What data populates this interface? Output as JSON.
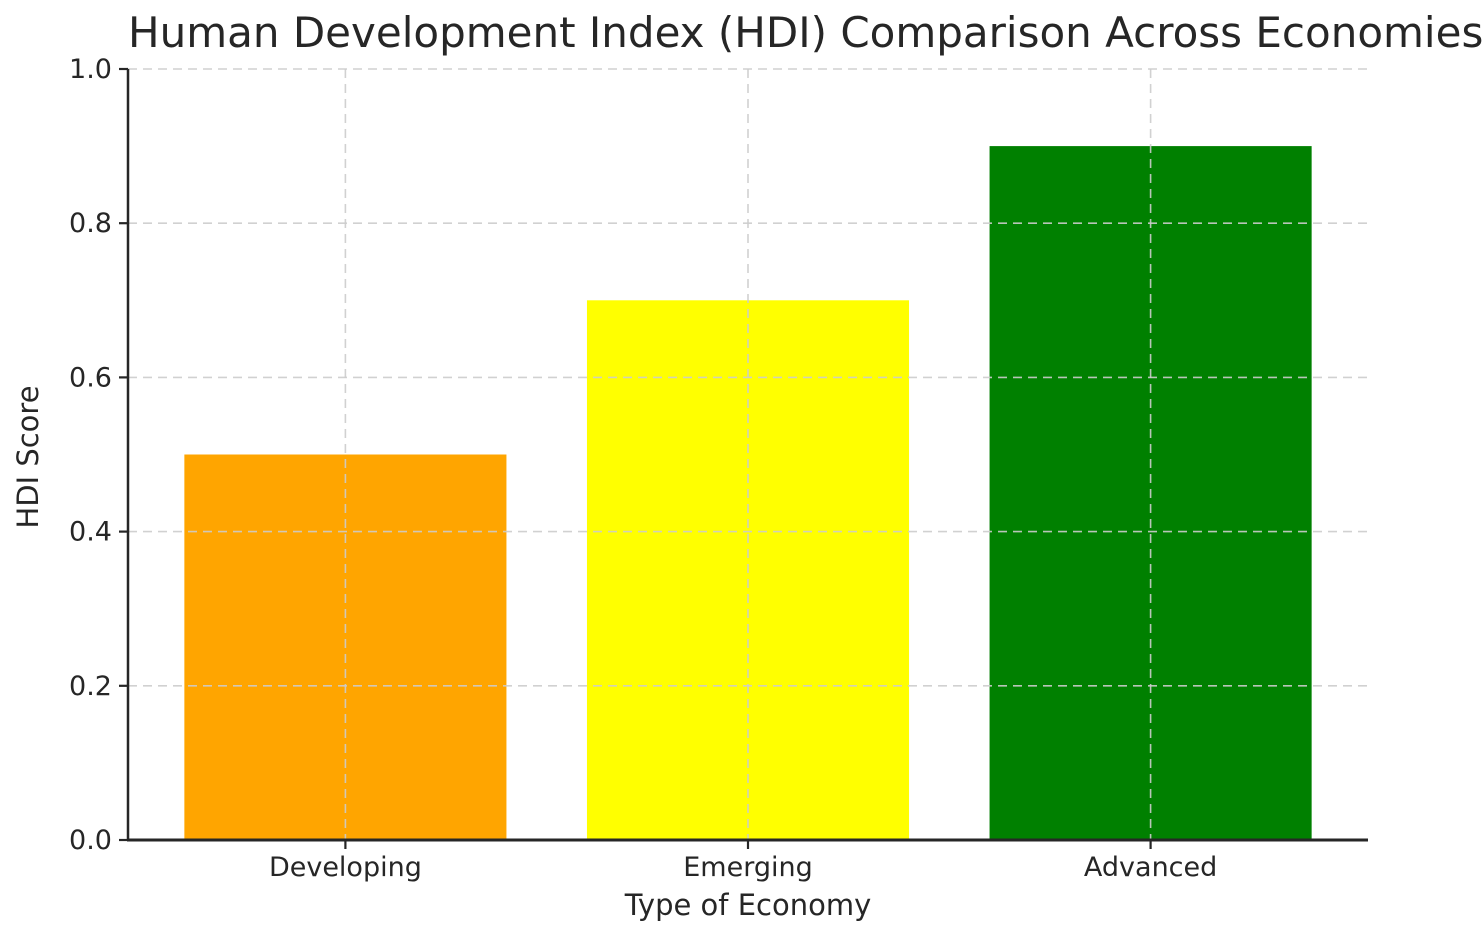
{
  "chart_data": {
    "type": "bar",
    "title": "Human Development Index (HDI) Comparison Across Economies",
    "xlabel": "Type of Economy",
    "ylabel": "HDI Score",
    "categories": [
      "Developing",
      "Emerging",
      "Advanced"
    ],
    "values": [
      0.5,
      0.7,
      0.9
    ],
    "bar_colors": [
      "#FFA500",
      "#FFFF00",
      "#008000"
    ],
    "ylim": [
      0.0,
      1.0
    ],
    "yticks": [
      0.0,
      0.2,
      0.4,
      0.6,
      0.8,
      1.0
    ],
    "ytick_labels": [
      "0.0",
      "0.2",
      "0.4",
      "0.6",
      "0.8",
      "1.0"
    ],
    "legend": "none",
    "grid": {
      "visible": true,
      "style": "dashed",
      "axes": "both",
      "drawn_above_bars": true,
      "color": "#cccccc"
    },
    "spines": "left and bottom only",
    "text_color": "#262626",
    "background_color": "#ffffff"
  }
}
